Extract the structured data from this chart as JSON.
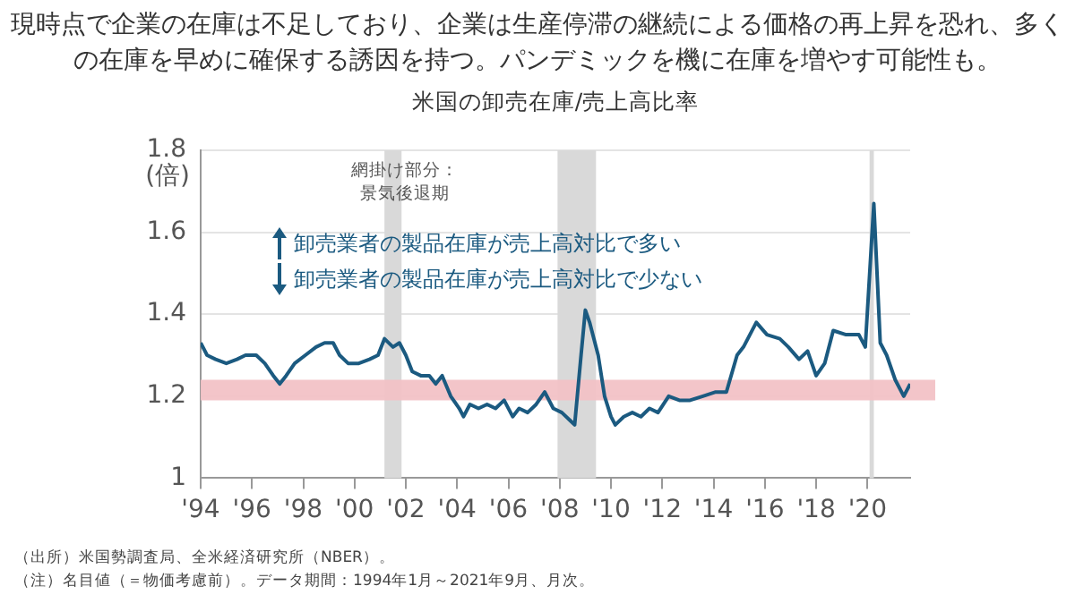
{
  "chart_data": {
    "type": "line",
    "title": "現時点で企業の在庫は不足しており、企業は生産停滞の継続による価格の再上昇を恐れ、多くの在庫を早めに確保する誘因を持つ。パンデミックを機に在庫を増やす可能性も。",
    "subtitle": "米国の卸売在庫/売上高比率",
    "ylabel": "(倍)",
    "annotations": [
      "網掛け部分：景気後退期",
      "卸売業者の製品在庫が売上高対比で多い",
      "卸売業者の製品在庫が売上高対比で少ない",
      "（出所）米国勢調査局、全米経済研究所（NBER）。",
      "（注）名目値（＝物価考慮前）。データ期間：1994年1月～2021年9月、月次。"
    ],
    "x": [
      "1994-01",
      "1994-04",
      "1994-08",
      "1995-01",
      "1995-06",
      "1995-10",
      "1996-03",
      "1996-07",
      "1996-11",
      "1997-02",
      "1997-05",
      "1997-09",
      "1998-02",
      "1998-07",
      "1998-11",
      "1999-03",
      "1999-06",
      "1999-10",
      "2000-03",
      "2000-08",
      "2000-12",
      "2001-03",
      "2001-07",
      "2001-10",
      "2002-01",
      "2002-04",
      "2002-08",
      "2002-12",
      "2003-03",
      "2003-06",
      "2003-10",
      "2004-02",
      "2004-04",
      "2004-07",
      "2004-11",
      "2005-03",
      "2005-07",
      "2005-11",
      "2006-03",
      "2006-06",
      "2006-10",
      "2007-02",
      "2007-06",
      "2007-10",
      "2008-02",
      "2008-06",
      "2008-08",
      "2008-11",
      "2009-01",
      "2009-03",
      "2009-07",
      "2009-10",
      "2010-01",
      "2010-03",
      "2010-07",
      "2010-11",
      "2011-03",
      "2011-07",
      "2011-11",
      "2012-04",
      "2012-09",
      "2013-02",
      "2013-08",
      "2014-02",
      "2014-07",
      "2014-12",
      "2015-03",
      "2015-09",
      "2016-02",
      "2016-08",
      "2016-12",
      "2017-05",
      "2017-09",
      "2018-01",
      "2018-05",
      "2018-09",
      "2019-03",
      "2019-09",
      "2019-12",
      "2020-04",
      "2020-07",
      "2020-10",
      "2021-02",
      "2021-06",
      "2021-09"
    ],
    "series": [
      {
        "color": "#1b5a80",
        "values": [
          1.33,
          1.3,
          1.29,
          1.28,
          1.29,
          1.3,
          1.3,
          1.28,
          1.25,
          1.23,
          1.25,
          1.28,
          1.3,
          1.32,
          1.33,
          1.33,
          1.3,
          1.28,
          1.28,
          1.29,
          1.3,
          1.34,
          1.32,
          1.33,
          1.3,
          1.26,
          1.25,
          1.25,
          1.23,
          1.25,
          1.2,
          1.17,
          1.15,
          1.18,
          1.17,
          1.18,
          1.17,
          1.19,
          1.15,
          1.17,
          1.16,
          1.18,
          1.21,
          1.17,
          1.16,
          1.14,
          1.13,
          1.3,
          1.41,
          1.38,
          1.3,
          1.2,
          1.15,
          1.13,
          1.15,
          1.16,
          1.15,
          1.17,
          1.16,
          1.2,
          1.19,
          1.19,
          1.2,
          1.21,
          1.21,
          1.3,
          1.32,
          1.38,
          1.35,
          1.34,
          1.32,
          1.29,
          1.31,
          1.25,
          1.28,
          1.36,
          1.35,
          1.35,
          1.32,
          1.67,
          1.33,
          1.3,
          1.24,
          1.2,
          1.23
        ]
      }
    ],
    "xlim": [
      "1994-01",
      "2021-09"
    ],
    "xticks": [
      {
        "value": "1994-01",
        "label": "'94"
      },
      {
        "value": "1996-01",
        "label": "'96"
      },
      {
        "value": "1998-01",
        "label": "'98"
      },
      {
        "value": "2000-01",
        "label": "'00"
      },
      {
        "value": "2002-01",
        "label": "'02"
      },
      {
        "value": "2004-01",
        "label": "'04"
      },
      {
        "value": "2006-01",
        "label": "'06"
      },
      {
        "value": "2008-01",
        "label": "'08"
      },
      {
        "value": "2010-01",
        "label": "'10"
      },
      {
        "value": "2012-01",
        "label": "'12"
      },
      {
        "value": "2014-01",
        "label": "'14"
      },
      {
        "value": "2016-01",
        "label": "'16"
      },
      {
        "value": "2018-01",
        "label": "'18"
      },
      {
        "value": "2020-01",
        "label": "'20"
      }
    ],
    "ylim": [
      1,
      1.8
    ],
    "yticks": [
      1,
      1.2,
      1.4,
      1.6,
      1.8
    ],
    "bands": [
      {
        "axis": "x",
        "from": "2001-03",
        "to": "2001-11",
        "color": "#d9d9d9"
      },
      {
        "axis": "x",
        "from": "2007-12",
        "to": "2009-06",
        "color": "#d9d9d9"
      },
      {
        "axis": "x",
        "from": "2020-02",
        "to": "2020-04",
        "color": "#d9d9d9"
      },
      {
        "axis": "y",
        "from": 1.19,
        "to": 1.24,
        "color": "#f2c2c6"
      }
    ],
    "grid": "y",
    "legend": false,
    "marker": "none",
    "line_style": "solid"
  }
}
